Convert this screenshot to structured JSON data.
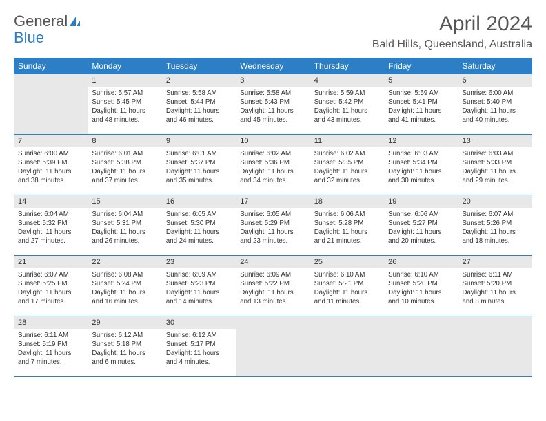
{
  "brand": {
    "text1": "General",
    "text2": "Blue"
  },
  "title": "April 2024",
  "location": "Bald Hills, Queensland, Australia",
  "header_color": "#2d7fc5",
  "daynum_bg": "#e8e8e8",
  "days": [
    "Sunday",
    "Monday",
    "Tuesday",
    "Wednesday",
    "Thursday",
    "Friday",
    "Saturday"
  ],
  "weeks": [
    [
      null,
      {
        "n": "1",
        "sr": "5:57 AM",
        "ss": "5:45 PM",
        "dl": "11 hours and 48 minutes."
      },
      {
        "n": "2",
        "sr": "5:58 AM",
        "ss": "5:44 PM",
        "dl": "11 hours and 46 minutes."
      },
      {
        "n": "3",
        "sr": "5:58 AM",
        "ss": "5:43 PM",
        "dl": "11 hours and 45 minutes."
      },
      {
        "n": "4",
        "sr": "5:59 AM",
        "ss": "5:42 PM",
        "dl": "11 hours and 43 minutes."
      },
      {
        "n": "5",
        "sr": "5:59 AM",
        "ss": "5:41 PM",
        "dl": "11 hours and 41 minutes."
      },
      {
        "n": "6",
        "sr": "6:00 AM",
        "ss": "5:40 PM",
        "dl": "11 hours and 40 minutes."
      }
    ],
    [
      {
        "n": "7",
        "sr": "6:00 AM",
        "ss": "5:39 PM",
        "dl": "11 hours and 38 minutes."
      },
      {
        "n": "8",
        "sr": "6:01 AM",
        "ss": "5:38 PM",
        "dl": "11 hours and 37 minutes."
      },
      {
        "n": "9",
        "sr": "6:01 AM",
        "ss": "5:37 PM",
        "dl": "11 hours and 35 minutes."
      },
      {
        "n": "10",
        "sr": "6:02 AM",
        "ss": "5:36 PM",
        "dl": "11 hours and 34 minutes."
      },
      {
        "n": "11",
        "sr": "6:02 AM",
        "ss": "5:35 PM",
        "dl": "11 hours and 32 minutes."
      },
      {
        "n": "12",
        "sr": "6:03 AM",
        "ss": "5:34 PM",
        "dl": "11 hours and 30 minutes."
      },
      {
        "n": "13",
        "sr": "6:03 AM",
        "ss": "5:33 PM",
        "dl": "11 hours and 29 minutes."
      }
    ],
    [
      {
        "n": "14",
        "sr": "6:04 AM",
        "ss": "5:32 PM",
        "dl": "11 hours and 27 minutes."
      },
      {
        "n": "15",
        "sr": "6:04 AM",
        "ss": "5:31 PM",
        "dl": "11 hours and 26 minutes."
      },
      {
        "n": "16",
        "sr": "6:05 AM",
        "ss": "5:30 PM",
        "dl": "11 hours and 24 minutes."
      },
      {
        "n": "17",
        "sr": "6:05 AM",
        "ss": "5:29 PM",
        "dl": "11 hours and 23 minutes."
      },
      {
        "n": "18",
        "sr": "6:06 AM",
        "ss": "5:28 PM",
        "dl": "11 hours and 21 minutes."
      },
      {
        "n": "19",
        "sr": "6:06 AM",
        "ss": "5:27 PM",
        "dl": "11 hours and 20 minutes."
      },
      {
        "n": "20",
        "sr": "6:07 AM",
        "ss": "5:26 PM",
        "dl": "11 hours and 18 minutes."
      }
    ],
    [
      {
        "n": "21",
        "sr": "6:07 AM",
        "ss": "5:25 PM",
        "dl": "11 hours and 17 minutes."
      },
      {
        "n": "22",
        "sr": "6:08 AM",
        "ss": "5:24 PM",
        "dl": "11 hours and 16 minutes."
      },
      {
        "n": "23",
        "sr": "6:09 AM",
        "ss": "5:23 PM",
        "dl": "11 hours and 14 minutes."
      },
      {
        "n": "24",
        "sr": "6:09 AM",
        "ss": "5:22 PM",
        "dl": "11 hours and 13 minutes."
      },
      {
        "n": "25",
        "sr": "6:10 AM",
        "ss": "5:21 PM",
        "dl": "11 hours and 11 minutes."
      },
      {
        "n": "26",
        "sr": "6:10 AM",
        "ss": "5:20 PM",
        "dl": "11 hours and 10 minutes."
      },
      {
        "n": "27",
        "sr": "6:11 AM",
        "ss": "5:20 PM",
        "dl": "11 hours and 8 minutes."
      }
    ],
    [
      {
        "n": "28",
        "sr": "6:11 AM",
        "ss": "5:19 PM",
        "dl": "11 hours and 7 minutes."
      },
      {
        "n": "29",
        "sr": "6:12 AM",
        "ss": "5:18 PM",
        "dl": "11 hours and 6 minutes."
      },
      {
        "n": "30",
        "sr": "6:12 AM",
        "ss": "5:17 PM",
        "dl": "11 hours and 4 minutes."
      },
      null,
      null,
      null,
      null
    ]
  ],
  "labels": {
    "sunrise": "Sunrise:",
    "sunset": "Sunset:",
    "daylight": "Daylight:"
  }
}
